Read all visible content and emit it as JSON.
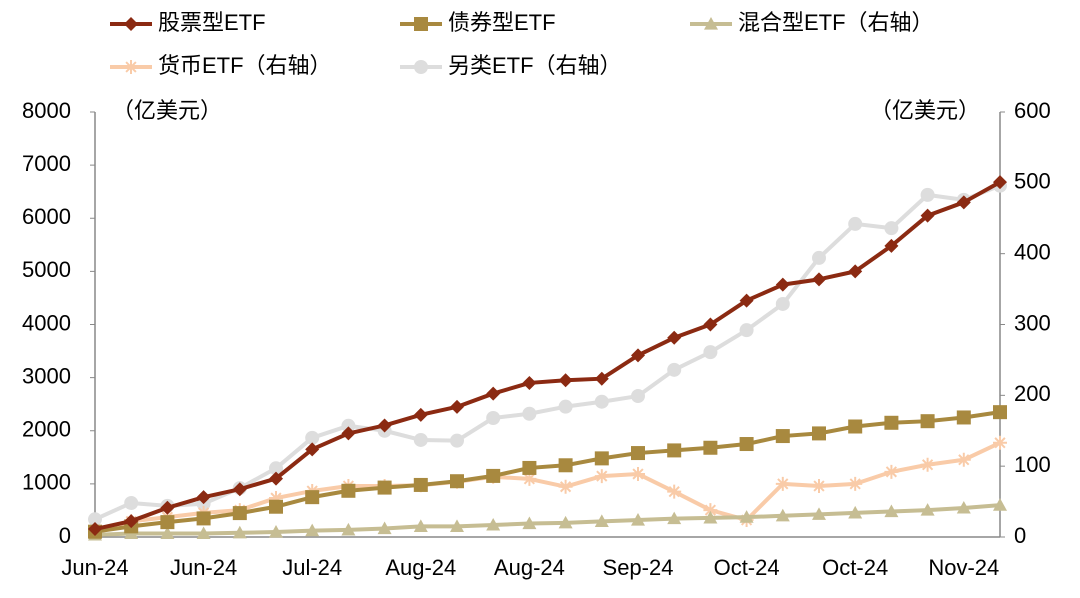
{
  "chart_data": {
    "type": "line",
    "y_label": "（亿美元）",
    "y2_label": "（亿美元）",
    "categories": [
      "Jun-24",
      null,
      null,
      "Jun-24",
      null,
      null,
      "Jul-24",
      null,
      null,
      "Aug-24",
      null,
      null,
      "Aug-24",
      null,
      null,
      "Sep-24",
      null,
      null,
      "Oct-24",
      null,
      null,
      "Oct-24",
      null,
      null,
      "Nov-24",
      null
    ],
    "ylim": [
      0,
      8000
    ],
    "yticks": [
      0,
      1000,
      2000,
      3000,
      4000,
      5000,
      6000,
      7000,
      8000
    ],
    "y2lim": [
      0,
      600
    ],
    "y2ticks": [
      0,
      100,
      200,
      300,
      400,
      500,
      600
    ],
    "series": [
      {
        "name": "股票型ETF",
        "color": "#8b2a12",
        "marker": "diamond",
        "values": [
          150,
          300,
          550,
          750,
          900,
          1100,
          1650,
          1950,
          2100,
          2300,
          2450,
          2700,
          2900,
          2950,
          2980,
          3420,
          3750,
          4000,
          4450,
          4750,
          4850,
          5000,
          5480,
          6050,
          6300,
          6680
        ]
      },
      {
        "name": "债券型ETF",
        "color": "#a8893f",
        "marker": "square",
        "values": [
          100,
          200,
          280,
          350,
          450,
          570,
          750,
          870,
          930,
          980,
          1050,
          1150,
          1300,
          1350,
          1480,
          1580,
          1630,
          1680,
          1750,
          1900,
          1950,
          2080,
          2150,
          2180,
          2250,
          2350
        ]
      },
      {
        "name": "混合型ETF（右轴）",
        "color": "#c6bd93",
        "marker": "triangle",
        "axis": "y2",
        "values": [
          3,
          5,
          5,
          5,
          6,
          7,
          9,
          10,
          12,
          15,
          15,
          17,
          19,
          20,
          22,
          24,
          26,
          27,
          28,
          30,
          32,
          34,
          36,
          38,
          41,
          45
        ]
      },
      {
        "name": "货币ETF（右轴）",
        "color": "#f9cba8",
        "marker": "star",
        "axis": "y2",
        "values": [
          6,
          22,
          28,
          34,
          38,
          55,
          65,
          72,
          72,
          73,
          78,
          85,
          82,
          71,
          86,
          89,
          64,
          38,
          24,
          75,
          72,
          75,
          92,
          102,
          109,
          133
        ]
      },
      {
        "name": "另类ETF（右轴）",
        "color": "#dddddd",
        "marker": "circle",
        "axis": "y2",
        "values": [
          25,
          48,
          44,
          47,
          69,
          97,
          140,
          157,
          150,
          137,
          136,
          168,
          174,
          184,
          191,
          199,
          236,
          261,
          292,
          329,
          394,
          442,
          436,
          483,
          476,
          496
        ]
      }
    ]
  }
}
